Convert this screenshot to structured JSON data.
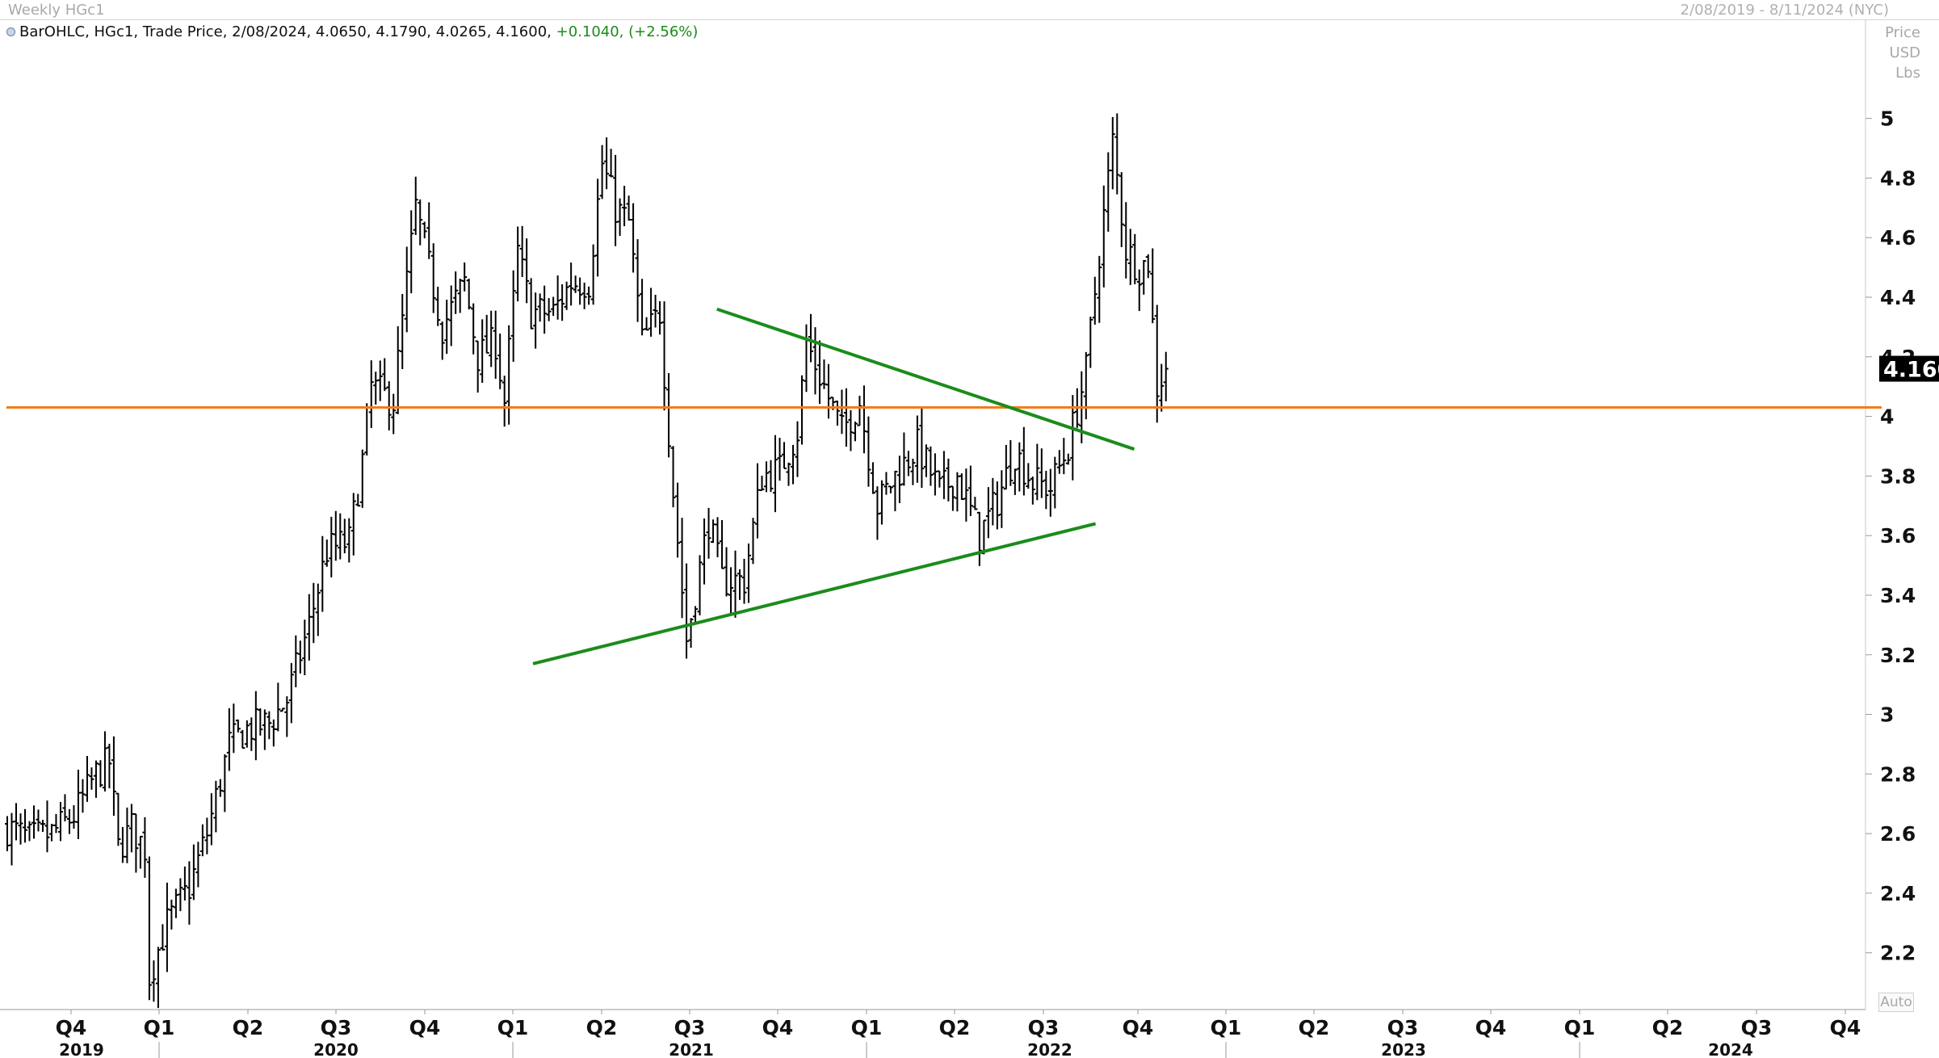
{
  "header": {
    "title": "Weekly HGc1",
    "date_range": "2/08/2019 - 8/11/2024 (NYC)"
  },
  "legend": {
    "text": "BarOHLC, HGc1, Trade Price, 2/08/2024, 4.0650, 4.1790, 4.0265, 4.1600,",
    "change": "+0.1040, (+2.56%)",
    "change_color": "#1a8c1a"
  },
  "axis_header": {
    "line1": "Price",
    "line2": "USD",
    "line3": "Lbs"
  },
  "autoscale_label": "Auto",
  "chart_data": {
    "type": "ohlc",
    "title": "Weekly HGc1",
    "series_name": "HGc1",
    "ylim": [
      2.04,
      5.3
    ],
    "yticks": [
      2.2,
      2.4,
      2.6,
      2.8,
      3,
      3.2,
      3.4,
      3.6,
      3.8,
      4,
      4.2,
      4.4,
      4.6,
      4.8,
      5
    ],
    "ytick_labels": [
      "2.2",
      "2.4",
      "2.6",
      "2.8",
      "3",
      "3.2",
      "3.4",
      "3.6",
      "3.8",
      "4",
      "4.2",
      "4.4",
      "4.6",
      "4.8",
      "5"
    ],
    "quarter_labels": [
      "Q4",
      "Q1",
      "Q2",
      "Q3",
      "Q4",
      "Q1",
      "Q2",
      "Q3",
      "Q4",
      "Q1",
      "Q2",
      "Q3",
      "Q4",
      "Q1",
      "Q2",
      "Q3",
      "Q4",
      "Q1",
      "Q2",
      "Q3",
      "Q4"
    ],
    "year_labels": [
      "2019",
      "2020",
      "2021",
      "2022",
      "2023",
      "2024"
    ],
    "last_price": 4.16,
    "last_price_label": "4.160",
    "bar_color": "#000000",
    "horizontal_line": {
      "value": 4.03,
      "color": "#f07d1a"
    },
    "trendlines": [
      {
        "label": "upper",
        "color": "#1a8c1a",
        "x": [
          "2022-09-01",
          "2024-06-20"
        ],
        "y": [
          4.36,
          3.89
        ]
      },
      {
        "label": "lower",
        "color": "#1a8c1a",
        "x": [
          "2021-11-15",
          "2024-04-20"
        ],
        "y": [
          3.17,
          3.64
        ]
      }
    ],
    "anchors": [
      [
        "2019-08-09",
        2.62
      ],
      [
        "2019-09-13",
        2.58
      ],
      [
        "2019-10-18",
        2.6
      ],
      [
        "2019-11-22",
        2.66
      ],
      [
        "2019-12-27",
        2.8
      ],
      [
        "2020-01-17",
        2.84
      ],
      [
        "2020-01-31",
        2.55
      ],
      [
        "2020-02-21",
        2.62
      ],
      [
        "2020-03-13",
        2.55
      ],
      [
        "2020-03-20",
        2.12
      ],
      [
        "2020-04-17",
        2.3
      ],
      [
        "2020-05-22",
        2.42
      ],
      [
        "2020-06-19",
        2.6
      ],
      [
        "2020-07-24",
        2.9
      ],
      [
        "2020-08-21",
        2.95
      ],
      [
        "2020-09-25",
        2.97
      ],
      [
        "2020-10-23",
        3.05
      ],
      [
        "2020-11-27",
        3.3
      ],
      [
        "2020-12-25",
        3.55
      ],
      [
        "2021-01-29",
        3.58
      ],
      [
        "2021-02-19",
        3.85
      ],
      [
        "2021-03-05",
        4.1
      ],
      [
        "2021-04-09",
        4.05
      ],
      [
        "2021-04-30",
        4.45
      ],
      [
        "2021-05-14",
        4.7
      ],
      [
        "2021-06-04",
        4.5
      ],
      [
        "2021-06-25",
        4.3
      ],
      [
        "2021-07-30",
        4.45
      ],
      [
        "2021-08-20",
        4.2
      ],
      [
        "2021-09-17",
        4.25
      ],
      [
        "2021-10-01",
        4.05
      ],
      [
        "2021-10-22",
        4.55
      ],
      [
        "2021-11-12",
        4.35
      ],
      [
        "2021-12-17",
        4.35
      ],
      [
        "2022-01-14",
        4.45
      ],
      [
        "2022-02-11",
        4.45
      ],
      [
        "2022-03-04",
        4.85
      ],
      [
        "2022-03-25",
        4.7
      ],
      [
        "2022-04-15",
        4.65
      ],
      [
        "2022-05-06",
        4.25
      ],
      [
        "2022-06-03",
        4.35
      ],
      [
        "2022-06-24",
        3.75
      ],
      [
        "2022-07-15",
        3.25
      ],
      [
        "2022-08-19",
        3.65
      ],
      [
        "2022-09-09",
        3.45
      ],
      [
        "2022-10-14",
        3.45
      ],
      [
        "2022-11-11",
        3.8
      ],
      [
        "2022-12-09",
        3.82
      ],
      [
        "2023-01-06",
        3.95
      ],
      [
        "2023-01-20",
        4.25
      ],
      [
        "2023-02-17",
        4.1
      ],
      [
        "2023-03-17",
        3.95
      ],
      [
        "2023-04-14",
        4.05
      ],
      [
        "2023-05-12",
        3.7
      ],
      [
        "2023-06-09",
        3.8
      ],
      [
        "2023-07-14",
        3.9
      ],
      [
        "2023-08-18",
        3.75
      ],
      [
        "2023-09-15",
        3.8
      ],
      [
        "2023-10-20",
        3.6
      ],
      [
        "2023-11-17",
        3.72
      ],
      [
        "2023-12-15",
        3.88
      ],
      [
        "2024-01-12",
        3.78
      ],
      [
        "2024-02-09",
        3.76
      ],
      [
        "2024-03-08",
        3.9
      ],
      [
        "2024-04-05",
        4.15
      ],
      [
        "2024-04-26",
        4.55
      ],
      [
        "2024-05-17",
        4.92
      ],
      [
        "2024-06-07",
        4.56
      ],
      [
        "2024-06-28",
        4.5
      ],
      [
        "2024-07-12",
        4.52
      ],
      [
        "2024-07-26",
        4.1
      ],
      [
        "2024-08-09",
        4.16
      ]
    ]
  }
}
